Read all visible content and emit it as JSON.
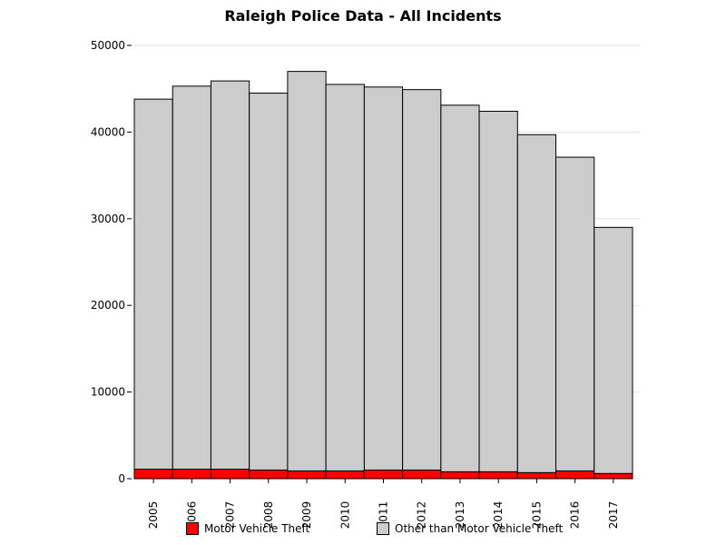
{
  "chart_data": {
    "type": "bar",
    "stacked": true,
    "title": "Raleigh Police Data - All Incidents",
    "xlabel": "",
    "ylabel": "",
    "categories": [
      "2005",
      "2006",
      "2007",
      "2008",
      "2009",
      "2010",
      "2011",
      "2012",
      "2013",
      "2014",
      "2015",
      "2016",
      "2017"
    ],
    "ylim": [
      0,
      50000
    ],
    "yticks": [
      0,
      10000,
      20000,
      30000,
      40000,
      50000
    ],
    "grid": true,
    "legend_position": "bottom",
    "series": [
      {
        "name": "Motor Vehicle Theft",
        "color": "#ff0000",
        "values": [
          1100,
          1100,
          1100,
          1000,
          900,
          900,
          1000,
          1000,
          800,
          800,
          700,
          900,
          600
        ]
      },
      {
        "name": "Other than Motor Vehicle Theft",
        "color": "#cccccc",
        "values": [
          42700,
          44200,
          44800,
          43500,
          46100,
          44600,
          44200,
          43900,
          42300,
          41600,
          39000,
          36200,
          28400
        ]
      }
    ]
  }
}
